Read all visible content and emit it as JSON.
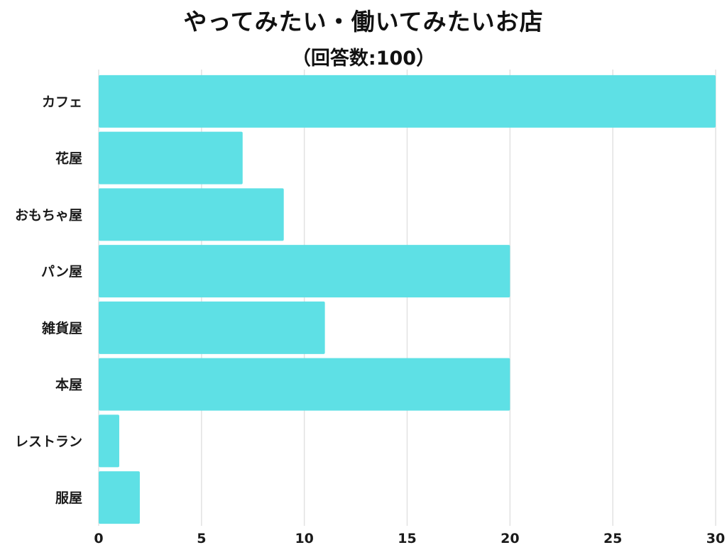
{
  "chart_data": {
    "type": "bar",
    "orientation": "horizontal",
    "title": "やってみたい・働いてみたいお店",
    "subtitle": "（回答数:100）",
    "categories": [
      "カフェ",
      "花屋",
      "おもちゃ屋",
      "パン屋",
      "雑貨屋",
      "本屋",
      "レストラン",
      "服屋"
    ],
    "values": [
      30,
      7,
      9,
      20,
      11,
      20,
      1,
      2
    ],
    "xlim": [
      0,
      30
    ],
    "xticks": [
      0,
      5,
      10,
      15,
      20,
      25,
      30
    ],
    "xlabel": "",
    "ylabel": "",
    "grid": "vertical",
    "bar_color": "#5ee0e5",
    "grid_color": "#e2e2e2"
  }
}
